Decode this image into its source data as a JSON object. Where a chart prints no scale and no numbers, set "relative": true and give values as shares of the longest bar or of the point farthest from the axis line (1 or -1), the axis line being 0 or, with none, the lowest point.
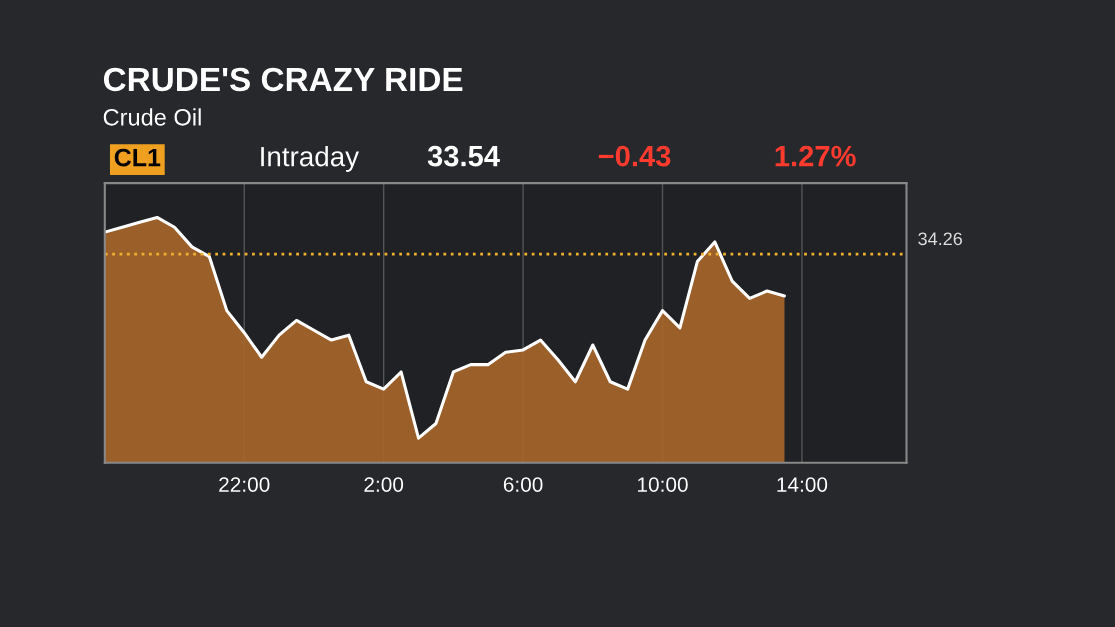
{
  "chart_data": {
    "type": "area",
    "title": "CRUDE'S CRAZY RIDE",
    "subtitle": "Crude Oil",
    "annotations": [
      "CL1",
      "Intraday",
      "33.54",
      "−0.43",
      "1.27%",
      "34.26"
    ],
    "relative": true,
    "categories": [
      null,
      null,
      null,
      null,
      null,
      null,
      null,
      null,
      "22:00",
      null,
      null,
      null,
      null,
      null,
      null,
      null,
      "2:00",
      null,
      null,
      null,
      null,
      null,
      null,
      null,
      "6:00",
      null,
      null,
      null,
      null,
      null,
      null,
      null,
      "10:00",
      null,
      null,
      null,
      null,
      null,
      null,
      null,
      "14:00",
      null,
      null,
      null,
      null,
      null,
      null
    ],
    "series": [
      {
        "color": "#ffffff",
        "values": [
          0.94,
          0.96,
          0.98,
          1.0,
          0.96,
          0.88,
          0.84,
          0.62,
          0.53,
          0.43,
          0.52,
          0.58,
          0.54,
          0.5,
          0.52,
          0.33,
          0.3,
          0.37,
          0.1,
          0.16,
          0.37,
          0.4,
          0.4,
          0.45,
          0.46,
          0.5,
          0.42,
          0.33,
          0.48,
          0.33,
          0.3,
          0.5,
          0.62,
          0.55,
          0.82,
          0.9,
          0.74,
          0.67,
          0.7,
          0.68,
          null,
          null,
          null,
          null,
          null,
          null,
          null
        ]
      }
    ],
    "ref_lines": [
      {
        "axis": "y",
        "value": 0.85,
        "color": "#f0b030",
        "line_style": "dotted"
      }
    ],
    "grid": "x",
    "legend": false
  }
}
